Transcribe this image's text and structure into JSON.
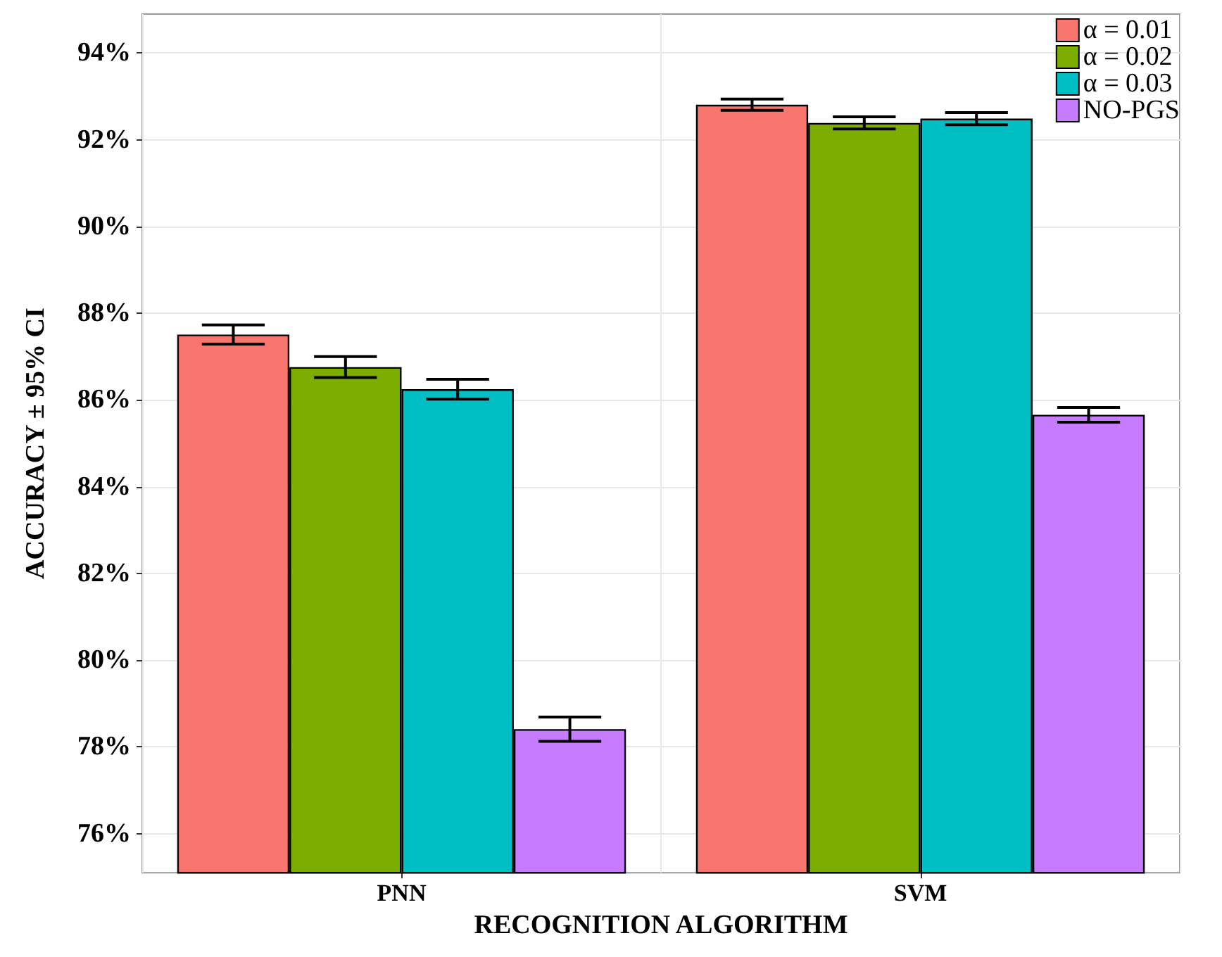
{
  "chart_data": {
    "type": "bar",
    "xlabel": "RECOGNITION ALGORITHM",
    "ylabel": "ACCURACY ± 95% CI",
    "categories": [
      "PNN",
      "SVM"
    ],
    "series": [
      {
        "name": "α = 0.01",
        "color": "#f8766d",
        "values": [
          87.51,
          92.81
        ],
        "errors": [
          0.22,
          0.13
        ]
      },
      {
        "name": "α = 0.02",
        "color": "#7cae00",
        "values": [
          86.76,
          92.39
        ],
        "errors": [
          0.24,
          0.14
        ]
      },
      {
        "name": "α = 0.03",
        "color": "#00bfc4",
        "values": [
          86.25,
          92.49
        ],
        "errors": [
          0.23,
          0.14
        ]
      },
      {
        "name": "NO-PGS",
        "color": "#c77cff",
        "values": [
          78.41,
          85.66
        ],
        "errors": [
          0.28,
          0.17
        ]
      }
    ],
    "ylim": [
      75.1,
      94.9
    ],
    "yticks": [
      {
        "value": 76,
        "label": "76%"
      },
      {
        "value": 78,
        "label": "78%"
      },
      {
        "value": 80,
        "label": "80%"
      },
      {
        "value": 82,
        "label": "82%"
      },
      {
        "value": 84,
        "label": "84%"
      },
      {
        "value": 86,
        "label": "86%"
      },
      {
        "value": 88,
        "label": "88%"
      },
      {
        "value": 90,
        "label": "90%"
      },
      {
        "value": 92,
        "label": "92%"
      },
      {
        "value": 94,
        "label": "94%"
      }
    ],
    "grid": true,
    "legend": "top right"
  }
}
